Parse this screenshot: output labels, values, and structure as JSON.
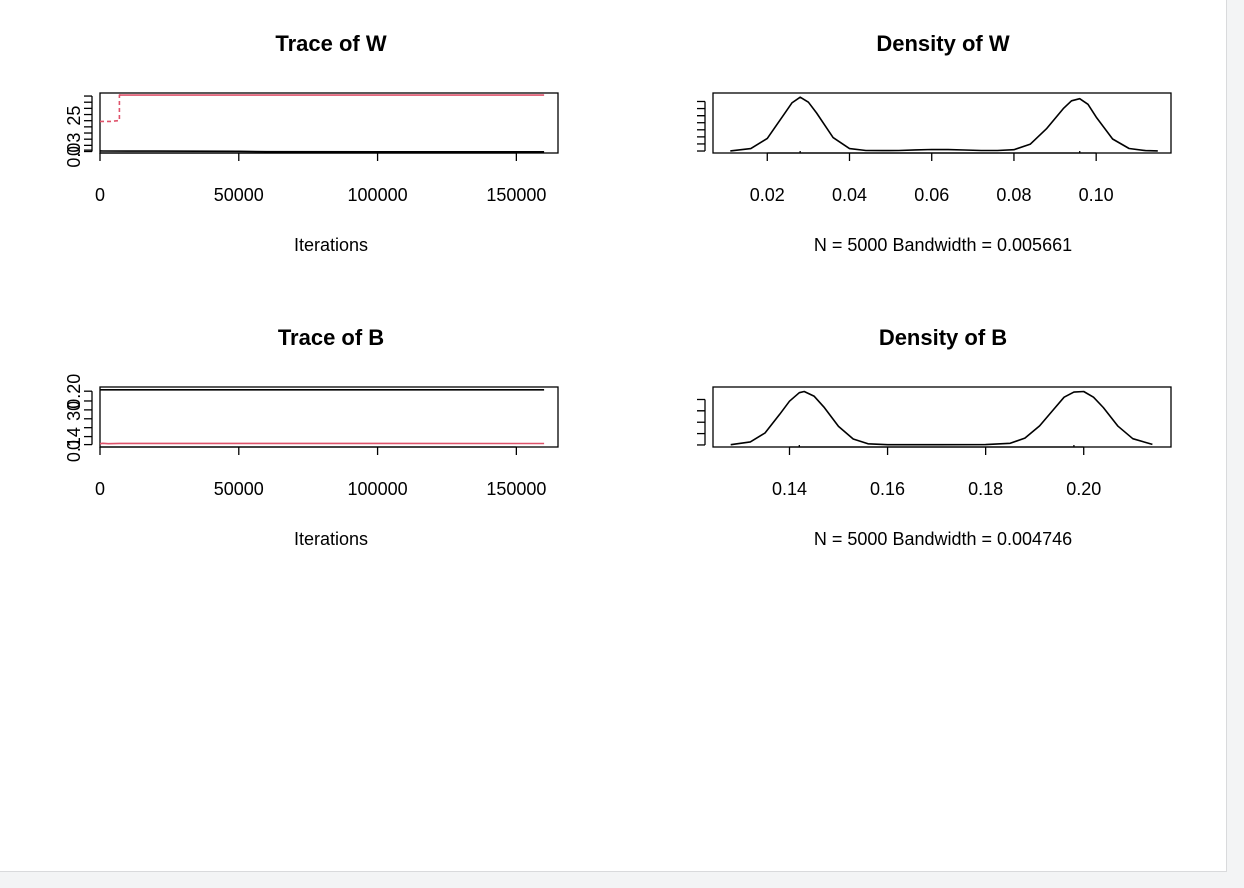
{
  "colors": {
    "black": "#000000",
    "red": "#DF536B",
    "background": "#ffffff"
  },
  "chart_data": [
    {
      "id": "trace-w",
      "type": "line",
      "title": "Trace of W",
      "xlabel": "Iterations",
      "ylabel": "",
      "xlim": [
        0,
        165000
      ],
      "ylim": [
        0.0265,
        0.0995
      ],
      "x_ticks": [
        "0",
        "50000",
        "100000",
        "150000"
      ],
      "y_ticks": [
        "0.03"
      ],
      "series": [
        {
          "color": "#000000",
          "style": "solid",
          "x": [
            0,
            1000,
            20000,
            50000,
            60000,
            160000
          ],
          "y": [
            0.029,
            0.0289,
            0.0288,
            0.0286,
            0.0281,
            0.028
          ]
        },
        {
          "color": "#DF536B",
          "style": "dashed",
          "x": [
            0,
            4000,
            7000,
            7000,
            8000
          ],
          "y": [
            0.065,
            0.065,
            0.066,
            0.097,
            0.097
          ]
        },
        {
          "color": "#DF536B",
          "style": "solid",
          "x": [
            7000,
            160000
          ],
          "y": [
            0.097,
            0.097
          ]
        }
      ]
    },
    {
      "id": "density-w",
      "type": "line",
      "title": "Density of W",
      "xlabel": "N = 5000   Bandwidth = 0.005661",
      "ylabel": "",
      "xlim": [
        0.0068,
        0.1182
      ],
      "ylim": [
        -1.4,
        41
      ],
      "x_ticks": [
        "0.02",
        "0.04",
        "0.06",
        "0.08",
        "0.10"
      ],
      "y_ticks": [
        "0",
        "25"
      ],
      "series": [
        {
          "color": "#000000",
          "style": "solid",
          "x": [
            0.011,
            0.016,
            0.02,
            0.024,
            0.026,
            0.028,
            0.03,
            0.032,
            0.036,
            0.04,
            0.044,
            0.048,
            0.052,
            0.056,
            0.06,
            0.064,
            0.068,
            0.072,
            0.076,
            0.08,
            0.084,
            0.088,
            0.092,
            0.094,
            0.096,
            0.098,
            0.1,
            0.104,
            0.108,
            0.112,
            0.115
          ],
          "y": [
            0.1,
            1.7,
            8.9,
            25.6,
            34.0,
            38.0,
            34.5,
            26.9,
            9.5,
            1.7,
            0.4,
            0.3,
            0.4,
            0.8,
            1.1,
            1.0,
            0.7,
            0.4,
            0.4,
            0.9,
            4.9,
            16.0,
            30.0,
            35.5,
            37.0,
            33.0,
            24.0,
            8.5,
            1.8,
            0.3,
            0.1
          ]
        }
      ]
    },
    {
      "id": "trace-b",
      "type": "line",
      "title": "Trace of B",
      "xlabel": "Iterations",
      "ylabel": "",
      "xlim": [
        0,
        165000
      ],
      "ylim": [
        0.1373,
        0.2047
      ],
      "x_ticks": [
        "0",
        "50000",
        "100000",
        "150000"
      ],
      "y_ticks": [
        "0.14",
        "0.20"
      ],
      "series": [
        {
          "color": "#000000",
          "style": "solid",
          "x": [
            0,
            160000
          ],
          "y": [
            0.2015,
            0.2015
          ]
        },
        {
          "color": "#DF536B",
          "style": "solid",
          "x": [
            0,
            1000,
            3000,
            7000,
            160000
          ],
          "y": [
            0.141,
            0.1415,
            0.141,
            0.1414,
            0.1412
          ]
        }
      ]
    },
    {
      "id": "density-b",
      "type": "line",
      "title": "Density of B",
      "xlabel": "N = 5000   Bandwidth = 0.004746",
      "ylabel": "",
      "xlim": [
        0.1244,
        0.2178
      ],
      "ylim": [
        -1.8,
        51
      ],
      "x_ticks": [
        "0.14",
        "0.16",
        "0.18",
        "0.20"
      ],
      "y_ticks": [
        "0",
        "30"
      ],
      "series": [
        {
          "color": "#000000",
          "style": "solid",
          "x": [
            0.128,
            0.132,
            0.135,
            0.138,
            0.14,
            0.142,
            0.143,
            0.145,
            0.147,
            0.15,
            0.153,
            0.156,
            0.16,
            0.17,
            0.18,
            0.185,
            0.188,
            0.191,
            0.194,
            0.196,
            0.198,
            0.2,
            0.202,
            0.204,
            0.207,
            0.21,
            0.214
          ],
          "y": [
            0.2,
            2.7,
            10.5,
            27.0,
            38.5,
            46.0,
            47.0,
            43.0,
            33.5,
            16.3,
            5.2,
            1.0,
            0.2,
            0.2,
            0.3,
            1.5,
            6.0,
            16.8,
            32.0,
            42.0,
            46.5,
            47.0,
            42.0,
            33.0,
            16.5,
            5.5,
            0.5
          ]
        }
      ]
    }
  ]
}
